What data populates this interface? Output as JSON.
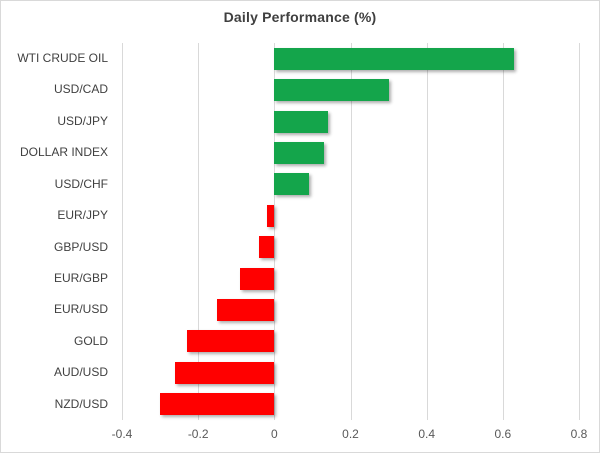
{
  "chart_data": {
    "type": "bar",
    "orientation": "horizontal",
    "title": "Daily Performance (%)",
    "categories": [
      "WTI CRUDE OIL",
      "USD/CAD",
      "USD/JPY",
      "DOLLAR INDEX",
      "USD/CHF",
      "EUR/JPY",
      "GBP/USD",
      "EUR/GBP",
      "EUR/USD",
      "GOLD",
      "AUD/USD",
      "NZD/USD"
    ],
    "values": [
      0.63,
      0.3,
      0.14,
      0.13,
      0.09,
      -0.02,
      -0.04,
      -0.09,
      -0.15,
      -0.23,
      -0.26,
      -0.3
    ],
    "xlim": [
      -0.4,
      0.8
    ],
    "x_ticks": [
      "-0.4",
      "-0.2",
      "0",
      "0.2",
      "0.4",
      "0.6",
      "0.8"
    ],
    "grid": "vertical",
    "legend": "none",
    "colors": {
      "positive": "#14A54B",
      "negative": "#FF0000",
      "gridline": "#D9D9D9",
      "title_text": "#3F3F3F",
      "category_text": "#404040",
      "tick_text": "#595959",
      "background": "#FFFFFF",
      "border": "#D9D9D9"
    }
  }
}
